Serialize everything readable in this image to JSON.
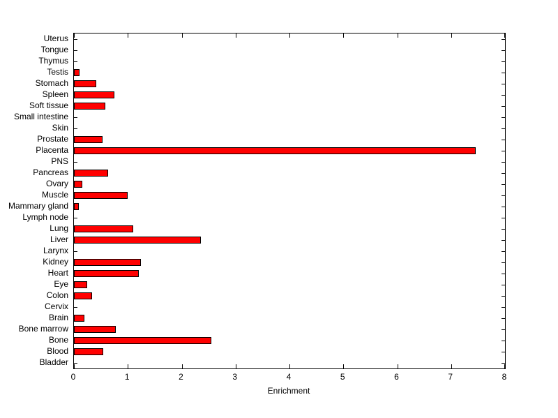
{
  "chart_data": {
    "type": "bar",
    "orientation": "horizontal",
    "title": "",
    "xlabel": "Enrichment",
    "ylabel": "",
    "xlim": [
      0,
      8
    ],
    "x_ticks": [
      "0",
      "1",
      "2",
      "3",
      "4",
      "5",
      "6",
      "7",
      "8"
    ],
    "grid": false,
    "legend": null,
    "bar_color": "#ff0000",
    "bar_edge_color": "#000000",
    "background_color": "#ffffff",
    "categories": [
      "Uterus",
      "Tongue",
      "Thymus",
      "Testis",
      "Stomach",
      "Spleen",
      "Soft tissue",
      "Small intestine",
      "Skin",
      "Prostate",
      "Placenta",
      "PNS",
      "Pancreas",
      "Ovary",
      "Muscle",
      "Mammary gland",
      "Lymph node",
      "Lung",
      "Liver",
      "Larynx",
      "Kidney",
      "Heart",
      "Eye",
      "Colon",
      "Cervix",
      "Brain",
      "Bone marrow",
      "Bone",
      "Blood",
      "Bladder"
    ],
    "values": [
      0,
      0,
      0,
      0.1,
      0.42,
      0.75,
      0.58,
      0,
      0,
      0.53,
      7.45,
      0,
      0.63,
      0.16,
      1.0,
      0.09,
      0,
      1.1,
      2.36,
      0,
      1.24,
      1.2,
      0.25,
      0.34,
      0,
      0.19,
      0.78,
      2.55,
      0.55,
      0
    ]
  }
}
